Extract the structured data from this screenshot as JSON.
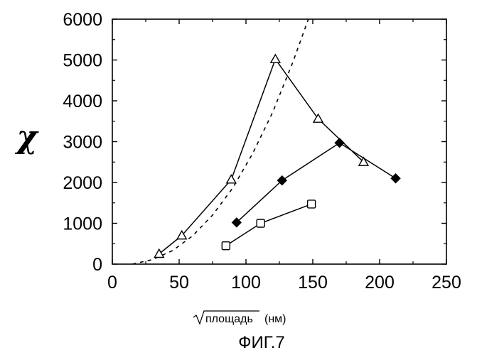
{
  "chart_data": {
    "type": "line",
    "title": "",
    "xlabel": "площадь",
    "xlabel_unit": "(нм)",
    "ylabel": "χ",
    "figure_caption": "ФИГ.7",
    "xlim": [
      0,
      250
    ],
    "ylim": [
      0,
      6000
    ],
    "xticks": [
      "0",
      "50",
      "100",
      "150",
      "200",
      "250"
    ],
    "yticks": [
      "0",
      "1000",
      "2000",
      "3000",
      "4000",
      "5000",
      "6000"
    ],
    "grid": false,
    "series": [
      {
        "marker": "open-triangle",
        "line_style": "solid",
        "x": [
          35,
          52,
          89,
          122,
          154,
          188
        ],
        "y": [
          250,
          700,
          2070,
          5020,
          3560,
          2500
        ]
      },
      {
        "marker": "filled-diamond",
        "line_style": "solid",
        "x": [
          93,
          127,
          170,
          212
        ],
        "y": [
          1020,
          2050,
          2970,
          2100
        ]
      },
      {
        "marker": "open-square",
        "line_style": "solid",
        "x": [
          85,
          111,
          149
        ],
        "y": [
          450,
          1000,
          1470
        ]
      },
      {
        "marker": "none",
        "line_style": "dashed",
        "x": [
          15,
          30,
          45,
          60,
          75,
          90,
          105,
          120,
          135,
          150,
          157
        ],
        "y": [
          0,
          110,
          330,
          690,
          1200,
          1860,
          2710,
          3720,
          4940,
          6300,
          7000
        ]
      }
    ]
  }
}
